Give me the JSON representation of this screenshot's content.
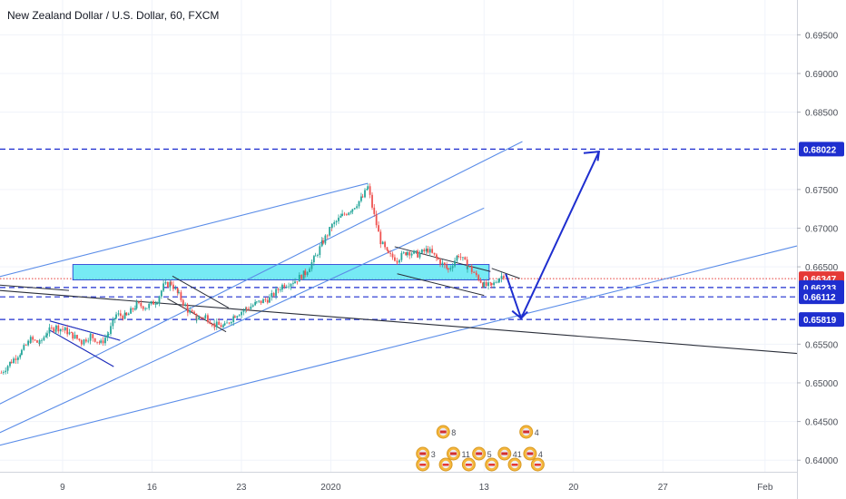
{
  "header": {
    "title": "New Zealand Dollar / U.S. Dollar, 60, FXCM"
  },
  "chart_data": {
    "type": "line",
    "title": "New Zealand Dollar / U.S. Dollar, 60, FXCM",
    "ylim": [
      0.6385,
      0.6995
    ],
    "y_ticks": [
      "0.69500",
      "0.69000",
      "0.68500",
      "0.67500",
      "0.67000",
      "0.66500",
      "0.65500",
      "0.65000",
      "0.64500",
      "0.64000"
    ],
    "x_ticks": [
      "9",
      "16",
      "23",
      "2020",
      "13",
      "20",
      "27",
      "Feb"
    ],
    "x_tick_days": [
      0,
      7,
      14,
      21,
      33,
      40,
      47,
      55
    ],
    "xlim": [
      -4.9,
      57.5
    ],
    "series": [
      {
        "values": [
          [
            -4.8,
            0.6513
          ],
          [
            -4.0,
            0.6528
          ],
          [
            -3.2,
            0.6541
          ],
          [
            -2.5,
            0.6556
          ],
          [
            -1.8,
            0.6551
          ],
          [
            -1.2,
            0.6566
          ],
          [
            -0.5,
            0.6572
          ],
          [
            0.2,
            0.6568
          ],
          [
            0.8,
            0.6561
          ],
          [
            1.5,
            0.6553
          ],
          [
            2.2,
            0.6561
          ],
          [
            3.0,
            0.6551
          ],
          [
            3.6,
            0.6564
          ],
          [
            4.2,
            0.6588
          ],
          [
            5.0,
            0.6586
          ],
          [
            5.8,
            0.6601
          ],
          [
            6.6,
            0.6598
          ],
          [
            7.4,
            0.6607
          ],
          [
            7.9,
            0.6625
          ],
          [
            8.5,
            0.6629
          ],
          [
            9.1,
            0.6613
          ],
          [
            9.8,
            0.6594
          ],
          [
            10.5,
            0.6583
          ],
          [
            11.2,
            0.6586
          ],
          [
            11.9,
            0.6575
          ],
          [
            12.7,
            0.6573
          ],
          [
            13.5,
            0.6588
          ],
          [
            14.4,
            0.6596
          ],
          [
            15.2,
            0.6603
          ],
          [
            16.2,
            0.6609
          ],
          [
            17.2,
            0.6626
          ],
          [
            18.2,
            0.6632
          ],
          [
            19.0,
            0.6642
          ],
          [
            19.8,
            0.6663
          ],
          [
            20.4,
            0.6683
          ],
          [
            21.1,
            0.6703
          ],
          [
            21.9,
            0.6716
          ],
          [
            22.7,
            0.6726
          ],
          [
            23.5,
            0.674
          ],
          [
            23.9,
            0.6753
          ],
          [
            24.4,
            0.6716
          ],
          [
            24.9,
            0.6683
          ],
          [
            25.5,
            0.6665
          ],
          [
            26.2,
            0.666
          ],
          [
            27.0,
            0.667
          ],
          [
            27.8,
            0.6666
          ],
          [
            28.6,
            0.6672
          ],
          [
            29.4,
            0.6659
          ],
          [
            30.2,
            0.6646
          ],
          [
            31.0,
            0.6666
          ],
          [
            31.7,
            0.6651
          ],
          [
            32.4,
            0.6639
          ],
          [
            33.0,
            0.6626
          ],
          [
            33.6,
            0.6625
          ],
          [
            34.2,
            0.6636
          ],
          [
            34.7,
            0.6642
          ]
        ]
      }
    ],
    "price_labels": [
      {
        "value": 0.68022,
        "text": "0.68022",
        "color": "#1e2ecf"
      },
      {
        "value": 0.66347,
        "text": "0.66347",
        "color": "#e53935"
      },
      {
        "value": 0.66233,
        "text": "0.66233",
        "color": "#1e2ecf"
      },
      {
        "value": 0.66112,
        "text": "0.66112",
        "color": "#1e2ecf"
      },
      {
        "value": 0.65819,
        "text": "0.65819",
        "color": "#1e2ecf"
      }
    ],
    "event_counts": [
      "8",
      "4",
      "3",
      "11",
      "5",
      "41",
      "4"
    ],
    "grid": true
  },
  "colors": {
    "drawing_blue": "#1e2ecf",
    "trendline_blue": "#5b8de8",
    "zone_fill": "#5ee6f2",
    "up": "#26a69a",
    "down": "#ef5350"
  }
}
